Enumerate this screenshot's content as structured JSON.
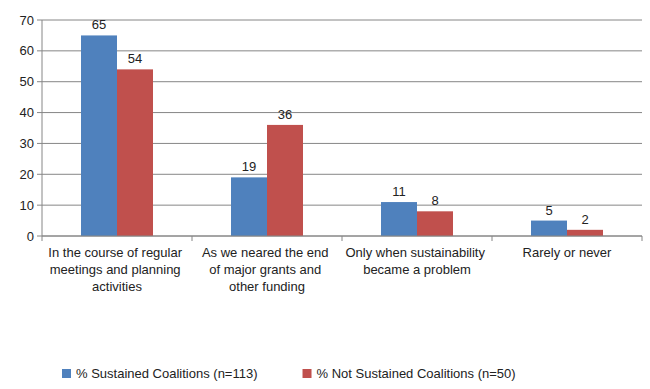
{
  "chart_data": {
    "type": "bar",
    "categories": [
      "In the course of regular meetings and planning activities",
      "As we neared the end of major grants and other funding",
      "Only when sustainability became a problem",
      "Rarely or never"
    ],
    "series": [
      {
        "name": "% Sustained Coalitions (n=113)",
        "color": "#4f81bd",
        "values": [
          65,
          19,
          11,
          5
        ]
      },
      {
        "name": "% Not Sustained Coalitions (n=50)",
        "color": "#c0504d",
        "values": [
          54,
          36,
          8,
          2
        ]
      }
    ],
    "ylim": [
      0,
      70
    ],
    "yticks": [
      0,
      10,
      20,
      30,
      40,
      50,
      60,
      70
    ],
    "grid": true,
    "legend": "bottom",
    "data_labels": true
  }
}
